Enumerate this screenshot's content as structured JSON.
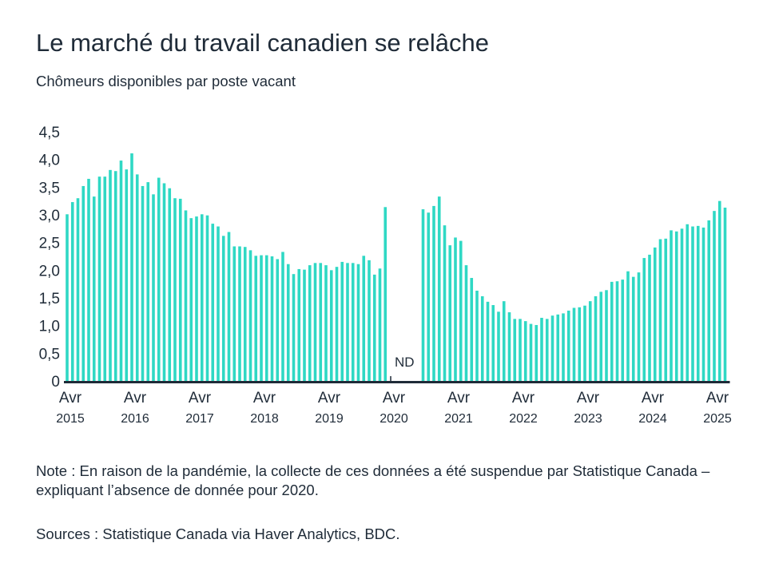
{
  "title": "Le marché du travail canadien se relâche",
  "subtitle": "Chômeurs disponibles par poste vacant",
  "note": "Note : En raison de la pandémie, la collecte de ces données a été suspendue par Statistique Canada – expliquant l’absence de donnée pour 2020.",
  "sources": "Sources : Statistique Canada via Haver Analytics, BDC.",
  "chart_data": {
    "type": "bar",
    "title": "Le marché du travail canadien se relâche",
    "subtitle": "Chômeurs disponibles par poste vacant",
    "xlabel": "",
    "ylabel": "",
    "ylim": [
      0,
      4.5
    ],
    "grid": false,
    "bar_color": "#2fd8c4",
    "axis_color": "#1f2b38",
    "y_ticks": [
      "0",
      "0,5",
      "1,0",
      "1,5",
      "2,0",
      "2,5",
      "3,0",
      "3,5",
      "4,0",
      "4,5"
    ],
    "x_ticks": [
      {
        "month": "Avr",
        "year": "2015"
      },
      {
        "month": "Avr",
        "year": "2016"
      },
      {
        "month": "Avr",
        "year": "2017"
      },
      {
        "month": "Avr",
        "year": "2018"
      },
      {
        "month": "Avr",
        "year": "2019"
      },
      {
        "month": "Avr",
        "year": "2020"
      },
      {
        "month": "Avr",
        "year": "2021"
      },
      {
        "month": "Avr",
        "year": "2022"
      },
      {
        "month": "Avr",
        "year": "2023"
      },
      {
        "month": "Avr",
        "year": "2024"
      },
      {
        "month": "Avr",
        "year": "2025"
      }
    ],
    "annotation": "ND",
    "x": [
      "2015-04",
      "2015-05",
      "2015-06",
      "2015-07",
      "2015-08",
      "2015-09",
      "2015-10",
      "2015-11",
      "2015-12",
      "2016-01",
      "2016-02",
      "2016-03",
      "2016-04",
      "2016-05",
      "2016-06",
      "2016-07",
      "2016-08",
      "2016-09",
      "2016-10",
      "2016-11",
      "2016-12",
      "2017-01",
      "2017-02",
      "2017-03",
      "2017-04",
      "2017-05",
      "2017-06",
      "2017-07",
      "2017-08",
      "2017-09",
      "2017-10",
      "2017-11",
      "2017-12",
      "2018-01",
      "2018-02",
      "2018-03",
      "2018-04",
      "2018-05",
      "2018-06",
      "2018-07",
      "2018-08",
      "2018-09",
      "2018-10",
      "2018-11",
      "2018-12",
      "2019-01",
      "2019-02",
      "2019-03",
      "2019-04",
      "2019-05",
      "2019-06",
      "2019-07",
      "2019-08",
      "2019-09",
      "2019-10",
      "2019-11",
      "2019-12",
      "2020-01",
      "2020-02",
      "2020-03",
      "2020-04",
      "2020-05",
      "2020-06",
      "2020-07",
      "2020-08",
      "2020-09",
      "2020-10",
      "2020-11",
      "2020-12",
      "2021-01",
      "2021-02",
      "2021-03",
      "2021-04",
      "2021-05",
      "2021-06",
      "2021-07",
      "2021-08",
      "2021-09",
      "2021-10",
      "2021-11",
      "2021-12",
      "2022-01",
      "2022-02",
      "2022-03",
      "2022-04",
      "2022-05",
      "2022-06",
      "2022-07",
      "2022-08",
      "2022-09",
      "2022-10",
      "2022-11",
      "2022-12",
      "2023-01",
      "2023-02",
      "2023-03",
      "2023-04",
      "2023-05",
      "2023-06",
      "2023-07",
      "2023-08",
      "2023-09",
      "2023-10",
      "2023-11",
      "2023-12",
      "2024-01",
      "2024-02",
      "2024-03",
      "2024-04",
      "2024-05",
      "2024-06",
      "2024-07",
      "2024-08",
      "2024-09",
      "2024-10",
      "2024-11",
      "2024-12",
      "2025-01",
      "2025-02",
      "2025-03",
      "2025-04",
      "2025-05",
      "2025-06"
    ],
    "values": [
      3.01,
      3.23,
      3.3,
      3.52,
      3.65,
      3.33,
      3.69,
      3.69,
      3.81,
      3.79,
      3.98,
      3.82,
      4.11,
      3.73,
      3.52,
      3.59,
      3.37,
      3.67,
      3.57,
      3.48,
      3.3,
      3.29,
      3.08,
      2.94,
      2.97,
      3.01,
      2.99,
      2.84,
      2.79,
      2.62,
      2.69,
      2.43,
      2.43,
      2.42,
      2.36,
      2.26,
      2.27,
      2.27,
      2.25,
      2.2,
      2.33,
      2.11,
      1.93,
      2.02,
      2.01,
      2.09,
      2.13,
      2.13,
      2.09,
      2.0,
      2.06,
      2.15,
      2.13,
      2.13,
      2.11,
      2.26,
      2.18,
      1.92,
      2.03,
      3.14,
      null,
      null,
      null,
      null,
      null,
      null,
      3.1,
      3.04,
      3.16,
      3.33,
      2.81,
      2.45,
      2.59,
      2.53,
      2.09,
      1.86,
      1.63,
      1.53,
      1.43,
      1.37,
      1.25,
      1.44,
      1.24,
      1.12,
      1.12,
      1.08,
      1.03,
      1.01,
      1.14,
      1.12,
      1.18,
      1.2,
      1.22,
      1.27,
      1.32,
      1.33,
      1.36,
      1.44,
      1.53,
      1.61,
      1.64,
      1.79,
      1.8,
      1.83,
      1.98,
      1.88,
      1.96,
      2.22,
      2.28,
      2.41,
      2.56,
      2.57,
      2.72,
      2.7,
      2.75,
      2.83,
      2.79,
      2.8,
      2.77,
      2.9,
      3.07,
      3.25,
      3.13
    ]
  }
}
